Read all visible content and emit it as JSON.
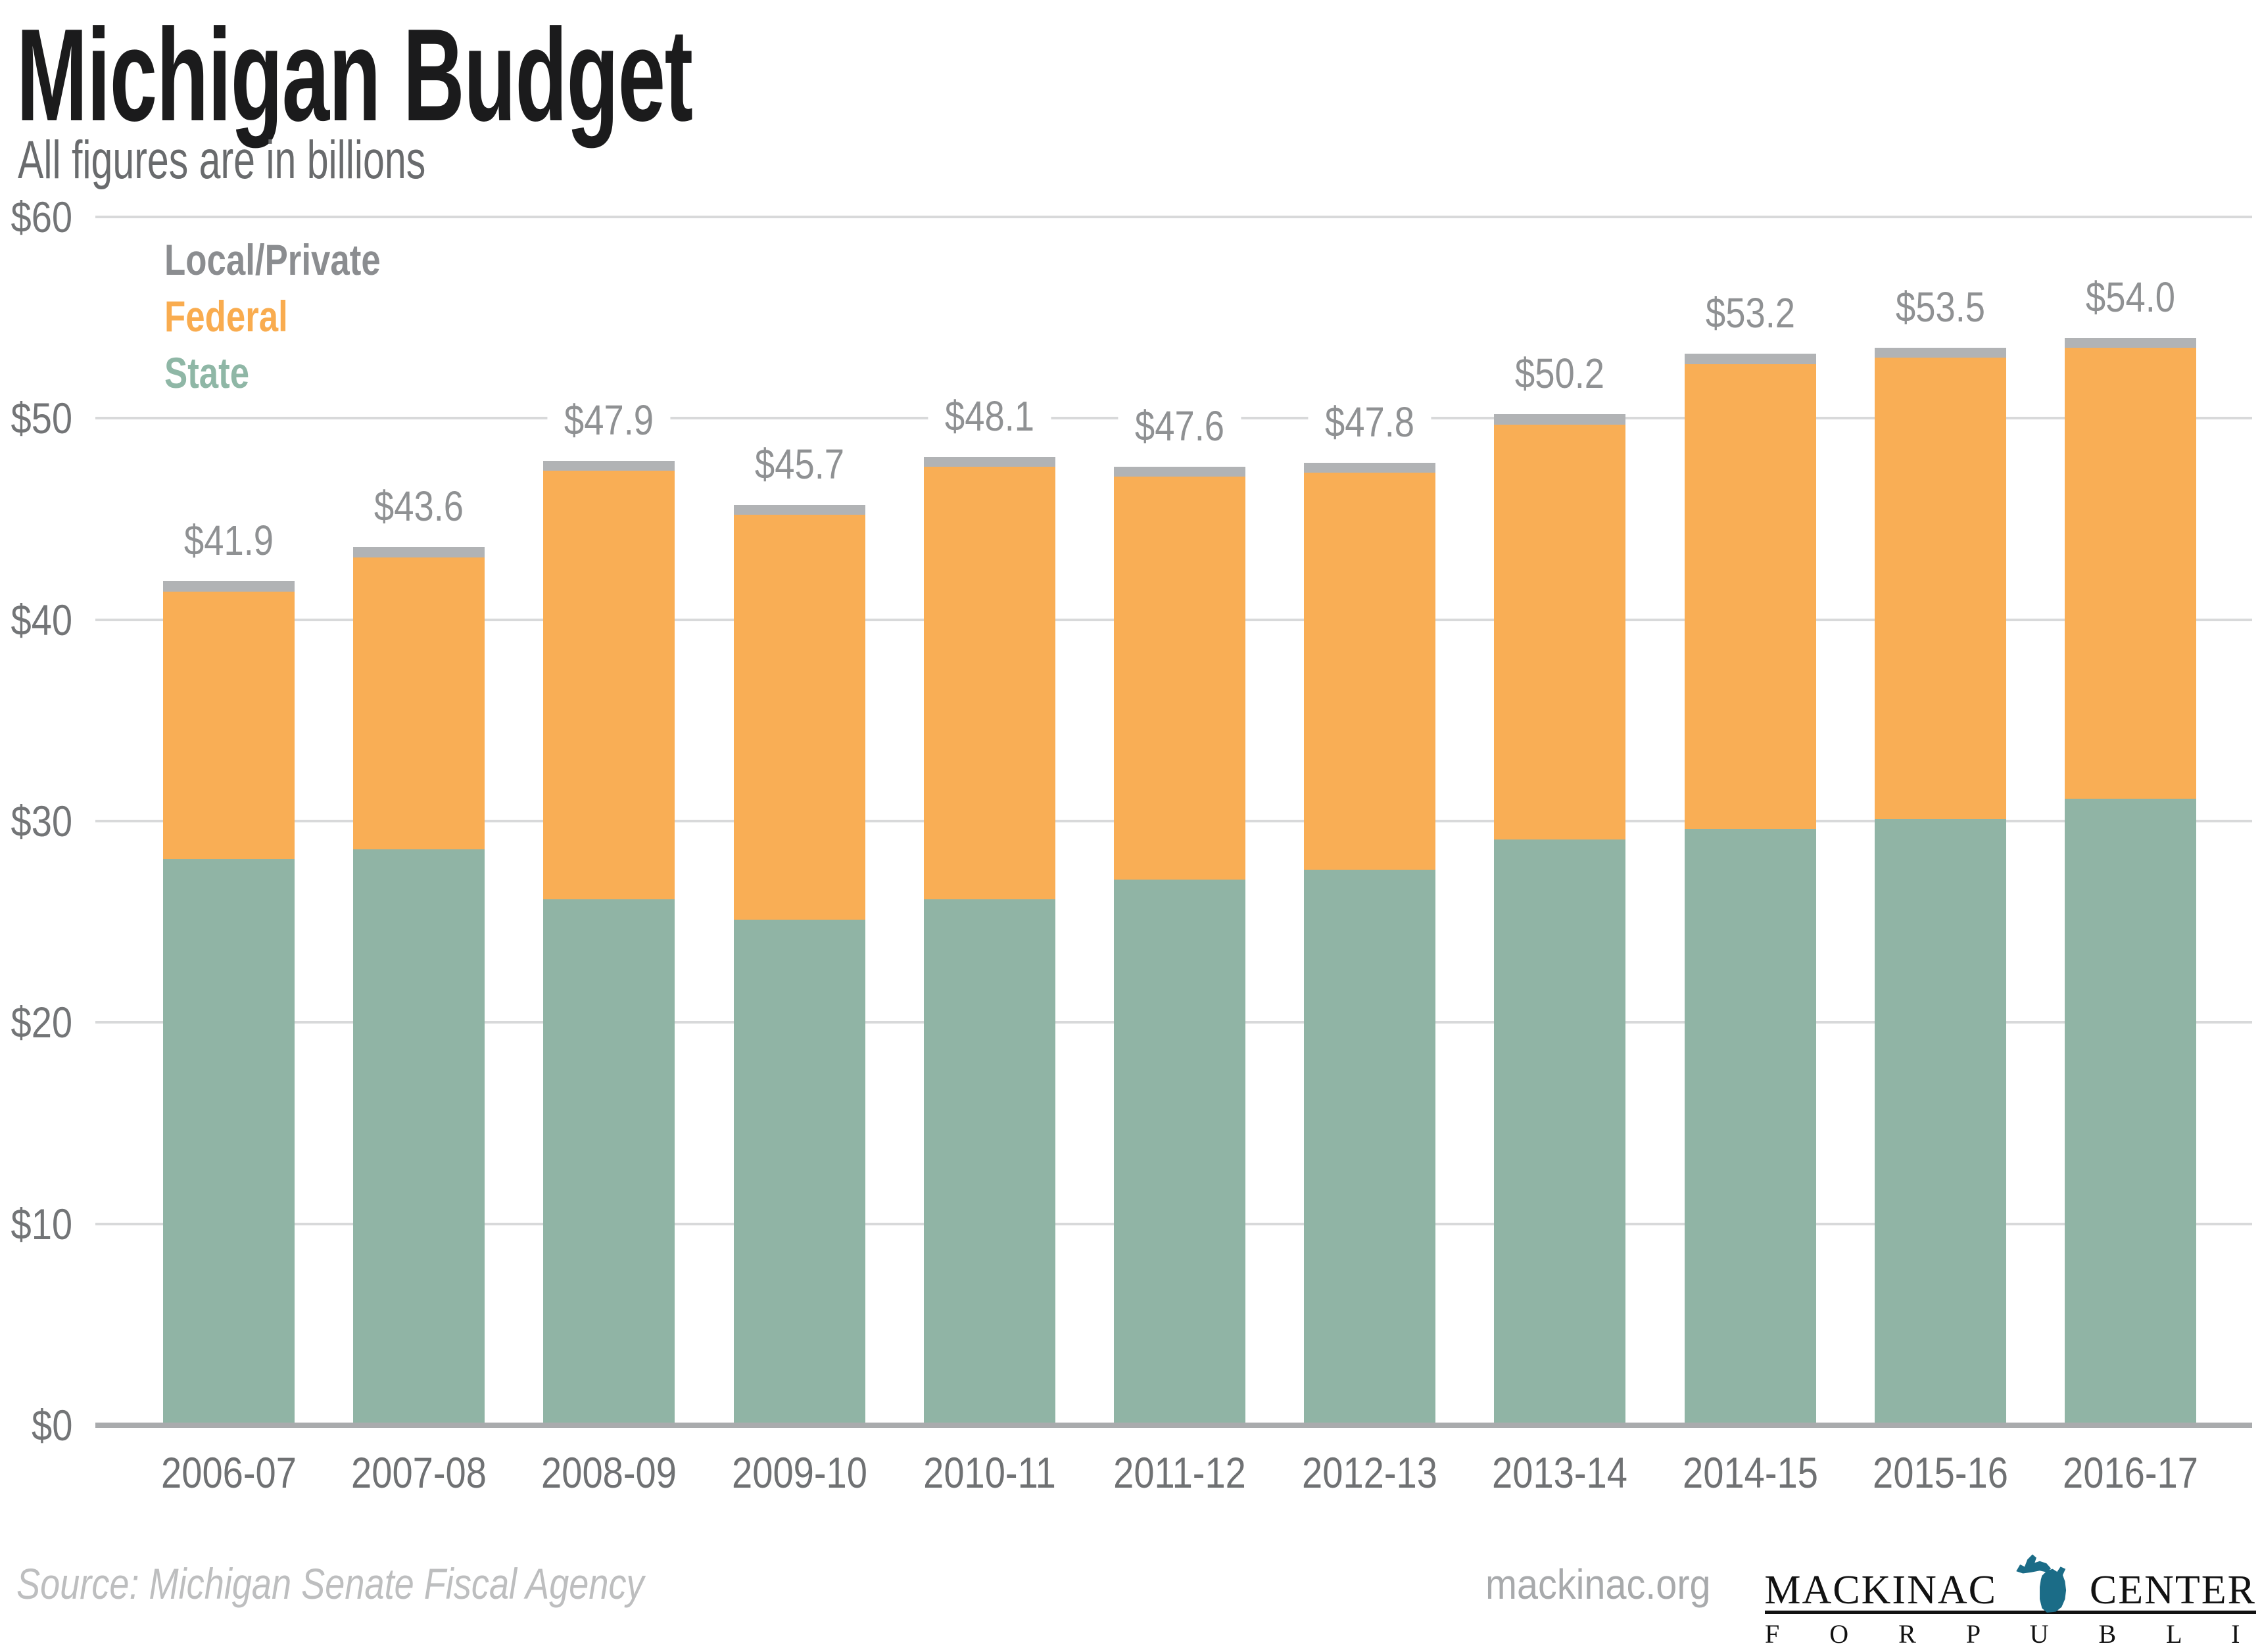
{
  "header": {
    "title": "Michigan Budget",
    "subtitle": "All figures are in billions"
  },
  "legend": {
    "items": [
      {
        "label": "Local/Private",
        "color": "#8b8d90"
      },
      {
        "label": "Federal",
        "color": "#f9ac4f"
      },
      {
        "label": "State",
        "color": "#8fb7a6"
      }
    ]
  },
  "chart_data": {
    "type": "bar",
    "stacked": true,
    "title": "Michigan Budget",
    "subtitle": "All figures are in billions",
    "categories": [
      "2006-07",
      "2007-08",
      "2008-09",
      "2009-10",
      "2010-11",
      "2011-12",
      "2012-13",
      "2013-14",
      "2014-15",
      "2015-16",
      "2016-17"
    ],
    "series": [
      {
        "name": "State",
        "color": "#90b4a5",
        "values": [
          28.1,
          28.6,
          26.1,
          25.1,
          26.1,
          27.1,
          27.6,
          29.1,
          29.6,
          30.1,
          31.1
        ]
      },
      {
        "name": "Federal",
        "color": "#f9ae55",
        "values": [
          13.3,
          14.5,
          21.3,
          20.1,
          21.5,
          20.0,
          19.7,
          20.6,
          23.1,
          22.9,
          22.4
        ]
      },
      {
        "name": "Local/Private",
        "color": "#b1b3b5",
        "values": [
          0.5,
          0.5,
          0.5,
          0.5,
          0.5,
          0.5,
          0.5,
          0.5,
          0.5,
          0.5,
          0.5
        ]
      }
    ],
    "totals": [
      41.9,
      43.6,
      47.9,
      45.7,
      48.1,
      47.6,
      47.8,
      50.2,
      53.2,
      53.5,
      54.0
    ],
    "total_labels": [
      "$41.9",
      "$43.6",
      "$47.9",
      "$45.7",
      "$48.1",
      "$47.6",
      "$47.8",
      "$50.2",
      "$53.2",
      "$53.5",
      "$54.0"
    ],
    "yticks": [
      0,
      10,
      20,
      30,
      40,
      50,
      60
    ],
    "ytick_labels": [
      "$0",
      "$10",
      "$20",
      "$30",
      "$40",
      "$50",
      "$60"
    ],
    "ylim": [
      0,
      60
    ],
    "grid": "horizontal",
    "legend_position": "top-left"
  },
  "footer": {
    "source": "Source: Michigan Senate Fiscal Agency",
    "site": "mackinac.org",
    "logo": {
      "word1": "MACKINAC",
      "word2": "CENTER",
      "subline": "F O R   P U B L I C   P O L I C Y",
      "mitten_color": "#1b6c87"
    }
  },
  "colors": {
    "title": "#1b1b1c",
    "subtitle": "#696b6d",
    "gridline": "#d8d9da",
    "axis_line": "#a9abad",
    "axis_labels": "#737577",
    "year_labels": "#6f7173",
    "value_labels": "#8f9193",
    "source_text": "#bdbebf",
    "site_text": "#a8aaac",
    "logo_text": "#121212"
  }
}
